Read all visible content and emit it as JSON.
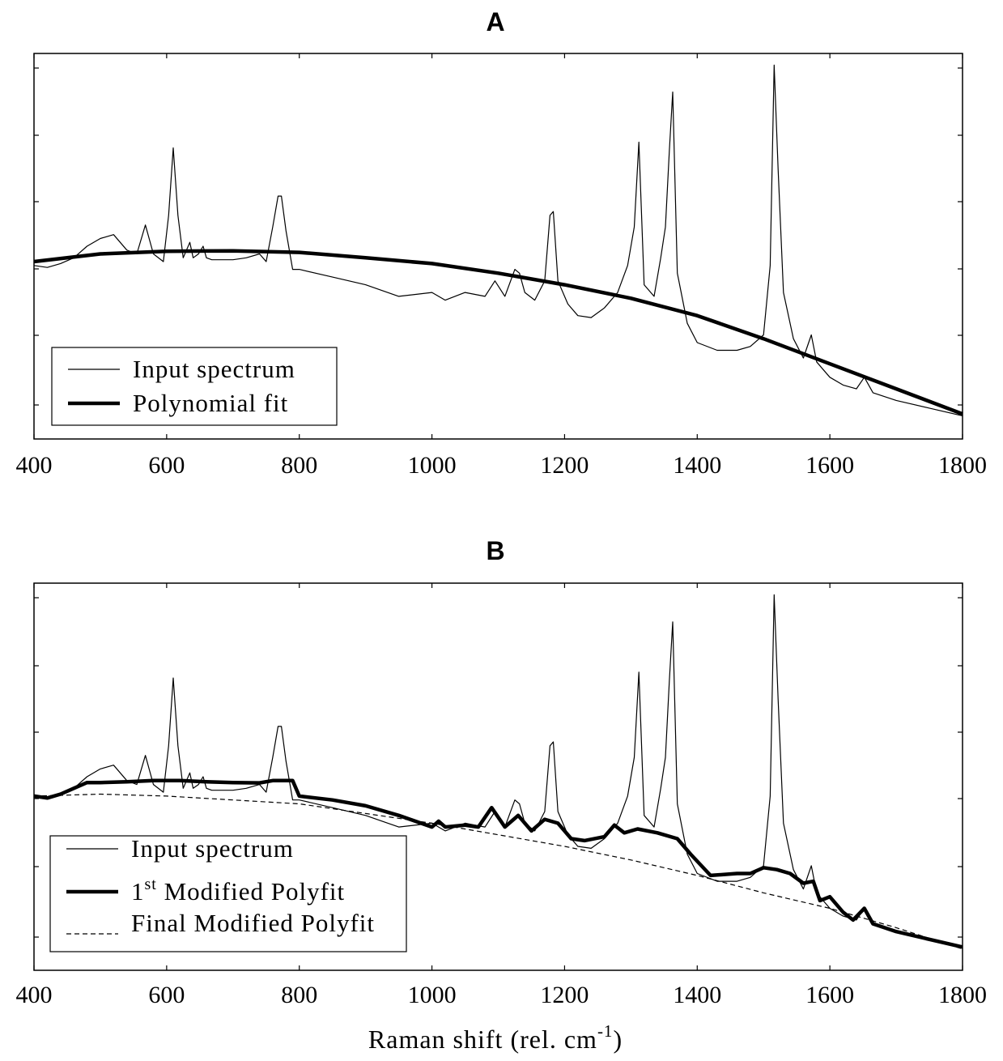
{
  "chart_data": [
    {
      "type": "line",
      "panel": "A",
      "title": "A",
      "xlim": [
        400,
        1800
      ],
      "ylim": [
        0,
        1
      ],
      "x_ticks": [
        400,
        600,
        800,
        1000,
        1200,
        1400,
        1600,
        1800
      ],
      "x_tick_labels": [
        "400",
        "600",
        "800",
        "1000",
        "1200",
        "1400",
        "1600",
        "1800"
      ],
      "y_tick_labels": [],
      "legend": {
        "location": "lower-left",
        "entries": [
          "Input spectrum",
          "Polynomial fit"
        ]
      },
      "series": [
        {
          "name": "Input spectrum",
          "style": "thin",
          "x": [
            400,
            420,
            440,
            460,
            480,
            500,
            520,
            540,
            555,
            568,
            580,
            595,
            603,
            610,
            617,
            625,
            635,
            640,
            648,
            655,
            660,
            668,
            680,
            700,
            720,
            740,
            750,
            760,
            768,
            773,
            780,
            790,
            800,
            850,
            900,
            950,
            1000,
            1020,
            1050,
            1080,
            1095,
            1110,
            1125,
            1132,
            1140,
            1155,
            1170,
            1178,
            1183,
            1190,
            1205,
            1220,
            1240,
            1260,
            1280,
            1295,
            1305,
            1312,
            1320,
            1335,
            1345,
            1352,
            1358,
            1363,
            1370,
            1385,
            1400,
            1430,
            1460,
            1480,
            1500,
            1510,
            1516,
            1522,
            1530,
            1545,
            1560,
            1572,
            1580,
            1590,
            1600,
            1620,
            1640,
            1652,
            1665,
            1700,
            1750,
            1800
          ],
          "y": [
            0.45,
            0.445,
            0.455,
            0.47,
            0.5,
            0.52,
            0.53,
            0.49,
            0.48,
            0.555,
            0.48,
            0.46,
            0.58,
            0.755,
            0.58,
            0.47,
            0.51,
            0.47,
            0.48,
            0.5,
            0.47,
            0.465,
            0.465,
            0.465,
            0.47,
            0.48,
            0.46,
            0.55,
            0.63,
            0.63,
            0.54,
            0.44,
            0.44,
            0.42,
            0.4,
            0.37,
            0.38,
            0.36,
            0.38,
            0.37,
            0.41,
            0.37,
            0.44,
            0.43,
            0.38,
            0.36,
            0.41,
            0.58,
            0.59,
            0.41,
            0.35,
            0.32,
            0.315,
            0.34,
            0.38,
            0.45,
            0.55,
            0.77,
            0.4,
            0.37,
            0.47,
            0.55,
            0.75,
            0.9,
            0.43,
            0.3,
            0.25,
            0.23,
            0.23,
            0.24,
            0.27,
            0.45,
            0.97,
            0.7,
            0.38,
            0.26,
            0.21,
            0.27,
            0.2,
            0.18,
            0.16,
            0.14,
            0.13,
            0.16,
            0.12,
            0.1,
            0.08,
            0.06
          ]
        },
        {
          "name": "Polynomial fit",
          "style": "thick",
          "x": [
            400,
            500,
            600,
            700,
            800,
            900,
            1000,
            1100,
            1200,
            1300,
            1400,
            1500,
            1600,
            1700,
            1800
          ],
          "y": [
            0.46,
            0.48,
            0.487,
            0.488,
            0.484,
            0.47,
            0.455,
            0.43,
            0.4,
            0.365,
            0.32,
            0.26,
            0.195,
            0.13,
            0.065
          ]
        }
      ]
    },
    {
      "type": "line",
      "panel": "B",
      "title": "B",
      "xlim": [
        400,
        1800
      ],
      "ylim": [
        0,
        1
      ],
      "x_ticks": [
        400,
        600,
        800,
        1000,
        1200,
        1400,
        1600,
        1800
      ],
      "x_tick_labels": [
        "400",
        "600",
        "800",
        "1000",
        "1200",
        "1400",
        "1600",
        "1800"
      ],
      "y_tick_labels": [],
      "xlabel": "Raman shift (rel. cm",
      "xlabel_superscript": "-1",
      "xlabel_suffix": ")",
      "legend": {
        "location": "lower-left",
        "entries": [
          {
            "text": "Input spectrum",
            "superscript": "",
            "suffix": ""
          },
          {
            "text": "1",
            "superscript": "st",
            "suffix": " Modified Polyfit"
          },
          {
            "text": "Final Modified Polyfit",
            "superscript": "",
            "suffix": ""
          }
        ]
      },
      "series": [
        {
          "name": "Input spectrum",
          "style": "thin",
          "x": [
            400,
            420,
            440,
            460,
            480,
            500,
            520,
            540,
            555,
            568,
            580,
            595,
            603,
            610,
            617,
            625,
            635,
            640,
            648,
            655,
            660,
            668,
            680,
            700,
            720,
            740,
            750,
            760,
            768,
            773,
            780,
            790,
            800,
            850,
            900,
            950,
            1000,
            1020,
            1050,
            1080,
            1095,
            1110,
            1125,
            1132,
            1140,
            1155,
            1170,
            1178,
            1183,
            1190,
            1205,
            1220,
            1240,
            1260,
            1280,
            1295,
            1305,
            1312,
            1320,
            1335,
            1345,
            1352,
            1358,
            1363,
            1370,
            1385,
            1400,
            1430,
            1460,
            1480,
            1500,
            1510,
            1516,
            1522,
            1530,
            1545,
            1560,
            1572,
            1580,
            1590,
            1600,
            1620,
            1640,
            1652,
            1665,
            1700,
            1750,
            1800
          ],
          "y": [
            0.45,
            0.445,
            0.455,
            0.47,
            0.5,
            0.52,
            0.53,
            0.49,
            0.48,
            0.555,
            0.48,
            0.46,
            0.58,
            0.755,
            0.58,
            0.47,
            0.51,
            0.47,
            0.48,
            0.5,
            0.47,
            0.465,
            0.465,
            0.465,
            0.47,
            0.48,
            0.46,
            0.55,
            0.63,
            0.63,
            0.54,
            0.44,
            0.44,
            0.42,
            0.4,
            0.37,
            0.38,
            0.36,
            0.38,
            0.37,
            0.41,
            0.37,
            0.44,
            0.43,
            0.38,
            0.36,
            0.41,
            0.58,
            0.59,
            0.41,
            0.35,
            0.32,
            0.315,
            0.34,
            0.38,
            0.45,
            0.55,
            0.77,
            0.4,
            0.37,
            0.47,
            0.55,
            0.75,
            0.9,
            0.43,
            0.3,
            0.25,
            0.23,
            0.23,
            0.24,
            0.27,
            0.45,
            0.97,
            0.7,
            0.38,
            0.26,
            0.21,
            0.27,
            0.2,
            0.18,
            0.16,
            0.14,
            0.13,
            0.16,
            0.12,
            0.1,
            0.08,
            0.06
          ]
        },
        {
          "name": "1st Modified Polyfit",
          "style": "thick",
          "x": [
            400,
            420,
            440,
            460,
            480,
            500,
            540,
            580,
            620,
            660,
            700,
            740,
            760,
            790,
            800,
            850,
            900,
            950,
            1000,
            1010,
            1020,
            1050,
            1070,
            1090,
            1110,
            1130,
            1150,
            1170,
            1190,
            1210,
            1230,
            1260,
            1275,
            1290,
            1310,
            1340,
            1370,
            1390,
            1420,
            1460,
            1480,
            1500,
            1520,
            1540,
            1560,
            1575,
            1585,
            1600,
            1620,
            1635,
            1652,
            1665,
            1700,
            1750,
            1800
          ],
          "y": [
            0.45,
            0.445,
            0.455,
            0.47,
            0.485,
            0.485,
            0.487,
            0.49,
            0.49,
            0.487,
            0.485,
            0.484,
            0.49,
            0.49,
            0.45,
            0.44,
            0.425,
            0.4,
            0.37,
            0.385,
            0.37,
            0.375,
            0.37,
            0.42,
            0.37,
            0.4,
            0.36,
            0.39,
            0.38,
            0.34,
            0.335,
            0.345,
            0.375,
            0.355,
            0.365,
            0.355,
            0.34,
            0.3,
            0.245,
            0.25,
            0.25,
            0.265,
            0.26,
            0.25,
            0.225,
            0.23,
            0.18,
            0.19,
            0.15,
            0.13,
            0.16,
            0.12,
            0.1,
            0.08,
            0.06
          ]
        },
        {
          "name": "Final Modified Polyfit",
          "style": "dashed",
          "x": [
            400,
            500,
            600,
            700,
            800,
            900,
            1000,
            1100,
            1200,
            1300,
            1400,
            1500,
            1600,
            1700,
            1800
          ],
          "y": [
            0.45,
            0.455,
            0.45,
            0.44,
            0.43,
            0.405,
            0.38,
            0.35,
            0.32,
            0.285,
            0.245,
            0.2,
            0.16,
            0.11,
            0.055
          ]
        }
      ]
    }
  ]
}
